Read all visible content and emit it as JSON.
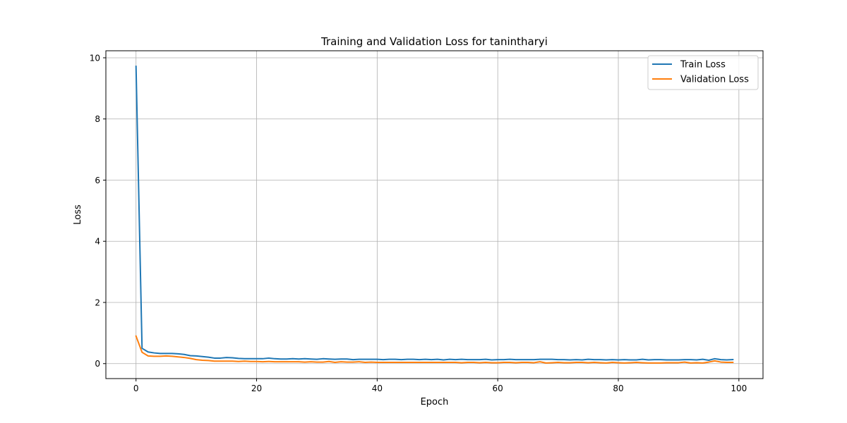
{
  "chart_data": {
    "type": "line",
    "title": "Training and Validation Loss for tanintharyi",
    "xlabel": "Epoch",
    "ylabel": "Loss",
    "xlim": [
      -5,
      104
    ],
    "ylim": [
      -0.49,
      10.23
    ],
    "xticks": [
      0,
      20,
      40,
      60,
      80,
      100
    ],
    "yticks": [
      0,
      2,
      4,
      6,
      8,
      10
    ],
    "grid": true,
    "legend_position": "top-right",
    "series": [
      {
        "name": "Train Loss",
        "color": "#1f77b4",
        "x": [
          0,
          1,
          2,
          3,
          4,
          5,
          6,
          7,
          8,
          9,
          10,
          11,
          12,
          13,
          14,
          15,
          16,
          17,
          18,
          19,
          20,
          21,
          22,
          23,
          24,
          25,
          26,
          27,
          28,
          29,
          30,
          31,
          32,
          33,
          34,
          35,
          36,
          37,
          38,
          39,
          40,
          41,
          42,
          43,
          44,
          45,
          46,
          47,
          48,
          49,
          50,
          51,
          52,
          53,
          54,
          55,
          56,
          57,
          58,
          59,
          60,
          61,
          62,
          63,
          64,
          65,
          66,
          67,
          68,
          69,
          70,
          71,
          72,
          73,
          74,
          75,
          76,
          77,
          78,
          79,
          80,
          81,
          82,
          83,
          84,
          85,
          86,
          87,
          88,
          89,
          90,
          91,
          92,
          93,
          94,
          95,
          96,
          97,
          98,
          99
        ],
        "values": [
          9.72,
          0.5,
          0.38,
          0.35,
          0.33,
          0.33,
          0.33,
          0.32,
          0.3,
          0.26,
          0.25,
          0.23,
          0.21,
          0.18,
          0.18,
          0.2,
          0.19,
          0.17,
          0.16,
          0.16,
          0.16,
          0.16,
          0.18,
          0.16,
          0.15,
          0.15,
          0.16,
          0.15,
          0.16,
          0.15,
          0.14,
          0.16,
          0.15,
          0.14,
          0.15,
          0.15,
          0.13,
          0.14,
          0.14,
          0.14,
          0.14,
          0.13,
          0.14,
          0.14,
          0.13,
          0.14,
          0.14,
          0.13,
          0.14,
          0.13,
          0.14,
          0.12,
          0.14,
          0.13,
          0.14,
          0.13,
          0.13,
          0.13,
          0.14,
          0.12,
          0.13,
          0.13,
          0.14,
          0.13,
          0.13,
          0.13,
          0.13,
          0.14,
          0.14,
          0.14,
          0.13,
          0.13,
          0.12,
          0.13,
          0.12,
          0.14,
          0.13,
          0.13,
          0.12,
          0.13,
          0.12,
          0.13,
          0.12,
          0.12,
          0.14,
          0.12,
          0.13,
          0.13,
          0.12,
          0.12,
          0.12,
          0.13,
          0.13,
          0.12,
          0.14,
          0.11,
          0.16,
          0.13,
          0.12,
          0.13
        ]
      },
      {
        "name": "Validation Loss",
        "color": "#ff7f0e",
        "x": [
          0,
          1,
          2,
          3,
          4,
          5,
          6,
          7,
          8,
          9,
          10,
          11,
          12,
          13,
          14,
          15,
          16,
          17,
          18,
          19,
          20,
          21,
          22,
          23,
          24,
          25,
          26,
          27,
          28,
          29,
          30,
          31,
          32,
          33,
          34,
          35,
          36,
          37,
          38,
          39,
          40,
          41,
          42,
          43,
          44,
          45,
          46,
          47,
          48,
          49,
          50,
          51,
          52,
          53,
          54,
          55,
          56,
          57,
          58,
          59,
          60,
          61,
          62,
          63,
          64,
          65,
          66,
          67,
          68,
          69,
          70,
          71,
          72,
          73,
          74,
          75,
          76,
          77,
          78,
          79,
          80,
          81,
          82,
          83,
          84,
          85,
          86,
          87,
          88,
          89,
          90,
          91,
          92,
          93,
          94,
          95,
          96,
          97,
          98,
          99
        ],
        "values": [
          0.9,
          0.37,
          0.25,
          0.24,
          0.24,
          0.25,
          0.24,
          0.22,
          0.2,
          0.17,
          0.13,
          0.11,
          0.1,
          0.08,
          0.08,
          0.08,
          0.08,
          0.07,
          0.08,
          0.07,
          0.07,
          0.06,
          0.07,
          0.06,
          0.06,
          0.06,
          0.06,
          0.06,
          0.05,
          0.06,
          0.05,
          0.05,
          0.07,
          0.04,
          0.06,
          0.05,
          0.05,
          0.06,
          0.04,
          0.05,
          0.04,
          0.04,
          0.04,
          0.04,
          0.04,
          0.04,
          0.04,
          0.04,
          0.04,
          0.04,
          0.04,
          0.04,
          0.04,
          0.04,
          0.03,
          0.04,
          0.04,
          0.03,
          0.04,
          0.03,
          0.03,
          0.04,
          0.04,
          0.03,
          0.04,
          0.04,
          0.03,
          0.06,
          0.02,
          0.03,
          0.04,
          0.03,
          0.03,
          0.04,
          0.04,
          0.03,
          0.04,
          0.03,
          0.02,
          0.04,
          0.03,
          0.02,
          0.03,
          0.04,
          0.03,
          0.02,
          0.02,
          0.02,
          0.03,
          0.03,
          0.03,
          0.05,
          0.02,
          0.03,
          0.02,
          0.05,
          0.09,
          0.05,
          0.04,
          0.04
        ]
      }
    ]
  }
}
